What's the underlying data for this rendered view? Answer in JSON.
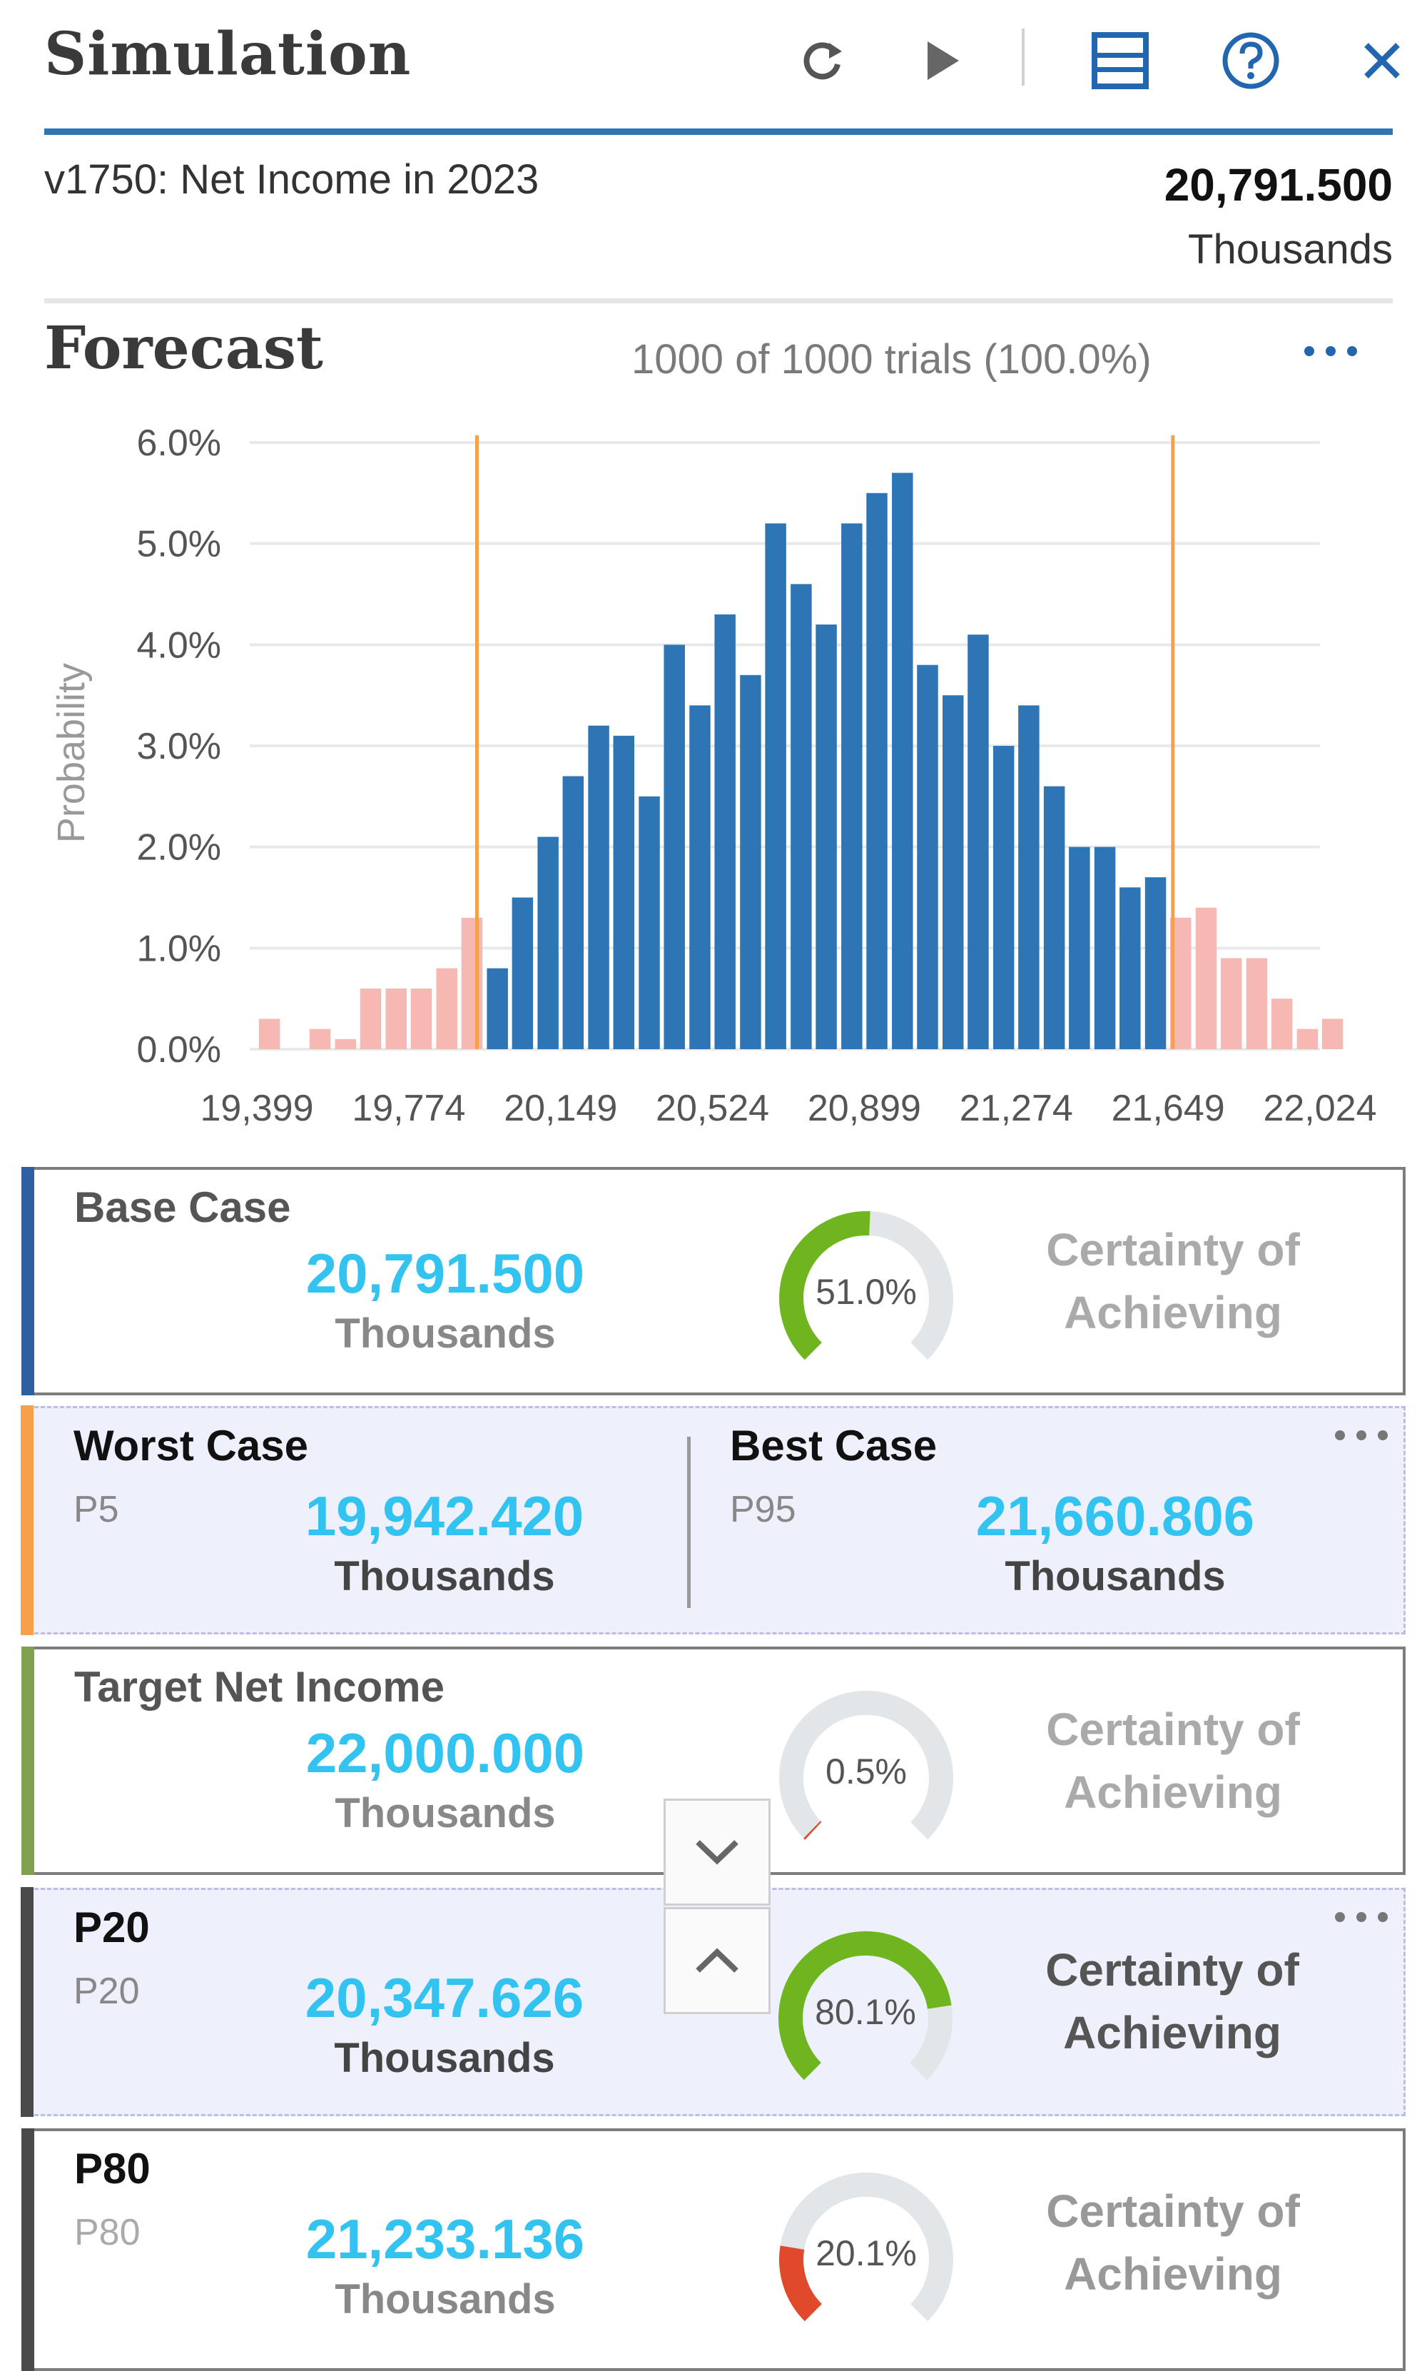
{
  "header": {
    "title": "Simulation",
    "toolbar": [
      {
        "name": "refresh-icon"
      },
      {
        "name": "run-icon"
      },
      {
        "name": "view-icon"
      },
      {
        "name": "help-icon"
      },
      {
        "name": "close-icon"
      }
    ]
  },
  "metric": {
    "name": "v1750: Net Income in 2023",
    "value": "20,791.500",
    "unit": "Thousands"
  },
  "forecast": {
    "title": "Forecast",
    "trials": "1000 of 1000 trials (100.0%)",
    "more_icon": "more-icon"
  },
  "chart_data": {
    "type": "bar",
    "ylabel": "Probability",
    "xlabel": "",
    "y_ticks": [
      "0.0%",
      "1.0%",
      "2.0%",
      "3.0%",
      "4.0%",
      "5.0%",
      "6.0%"
    ],
    "ylim": [
      0,
      6
    ],
    "x_ticks": [
      "19,399",
      "19,774",
      "20,149",
      "20,524",
      "20,899",
      "21,274",
      "21,649",
      "22,024"
    ],
    "xlim": [
      19399,
      22024
    ],
    "certainty_range": [
      19942.42,
      21660.806
    ],
    "bin_width": 62.5,
    "bins": [
      {
        "x": 19430,
        "y": 0.3
      },
      {
        "x": 19493,
        "y": 0.0
      },
      {
        "x": 19555,
        "y": 0.2
      },
      {
        "x": 19618,
        "y": 0.1
      },
      {
        "x": 19680,
        "y": 0.6
      },
      {
        "x": 19743,
        "y": 0.6
      },
      {
        "x": 19805,
        "y": 0.6
      },
      {
        "x": 19868,
        "y": 0.8
      },
      {
        "x": 19930,
        "y": 1.3
      },
      {
        "x": 19993,
        "y": 0.8
      },
      {
        "x": 20055,
        "y": 1.5
      },
      {
        "x": 20118,
        "y": 2.1
      },
      {
        "x": 20180,
        "y": 2.7
      },
      {
        "x": 20243,
        "y": 3.2
      },
      {
        "x": 20305,
        "y": 3.1
      },
      {
        "x": 20368,
        "y": 2.5
      },
      {
        "x": 20430,
        "y": 4.0
      },
      {
        "x": 20493,
        "y": 3.4
      },
      {
        "x": 20555,
        "y": 4.3
      },
      {
        "x": 20618,
        "y": 3.7
      },
      {
        "x": 20680,
        "y": 5.2
      },
      {
        "x": 20743,
        "y": 4.6
      },
      {
        "x": 20805,
        "y": 4.2
      },
      {
        "x": 20868,
        "y": 5.2
      },
      {
        "x": 20930,
        "y": 5.5
      },
      {
        "x": 20993,
        "y": 5.7
      },
      {
        "x": 21055,
        "y": 3.8
      },
      {
        "x": 21118,
        "y": 3.5
      },
      {
        "x": 21180,
        "y": 4.1
      },
      {
        "x": 21243,
        "y": 3.0
      },
      {
        "x": 21305,
        "y": 3.4
      },
      {
        "x": 21368,
        "y": 2.6
      },
      {
        "x": 21430,
        "y": 2.0
      },
      {
        "x": 21493,
        "y": 2.0
      },
      {
        "x": 21555,
        "y": 1.6
      },
      {
        "x": 21618,
        "y": 1.7
      },
      {
        "x": 21680,
        "y": 1.3
      },
      {
        "x": 21743,
        "y": 1.4
      },
      {
        "x": 21805,
        "y": 0.9
      },
      {
        "x": 21868,
        "y": 0.9
      },
      {
        "x": 21930,
        "y": 0.5
      },
      {
        "x": 21993,
        "y": 0.2
      },
      {
        "x": 22055,
        "y": 0.3
      }
    ],
    "colors": {
      "in_range": "#2e75b6",
      "out_range": "#f6b8b3",
      "marker": "#f5a04a",
      "grid": "#e9e9e9"
    }
  },
  "cards": {
    "base": {
      "title": "Base Case",
      "value": "20,791.500",
      "unit": "Thousands",
      "pct": "51.0%",
      "certainty": "Certainty of Achieving",
      "fill": 0.51,
      "color": "#5b9bd5"
    },
    "range": {
      "worst_title": "Worst Case",
      "worst_sub": "P5",
      "worst_value": "19,942.420",
      "worst_unit": "Thousands",
      "best_title": "Best Case",
      "best_sub": "P95",
      "best_value": "21,660.806",
      "best_unit": "Thousands",
      "color": "#f5a04a"
    },
    "target": {
      "title": "Target Net Income",
      "value": "22,000.000",
      "unit": "Thousands",
      "pct": "0.5%",
      "certainty": "Certainty of Achieving",
      "fill": 0.005,
      "color": "#8aaa55"
    },
    "p20": {
      "title": "P20",
      "sub": "P20",
      "value": "20,347.626",
      "unit": "Thousands",
      "pct": "80.1%",
      "certainty": "Certainty of Achieving",
      "fill": 0.801,
      "color": "#555555"
    },
    "p80": {
      "title": "P80",
      "sub": "P80",
      "value": "21,233.136",
      "unit": "Thousands",
      "pct": "20.1%",
      "certainty": "Certainty of Achieving",
      "fill": 0.201,
      "color": "#555555"
    }
  },
  "gauge_colors": {
    "high": "#6eb51f",
    "low": "#e04a2a",
    "track": "#e3e6e8"
  }
}
